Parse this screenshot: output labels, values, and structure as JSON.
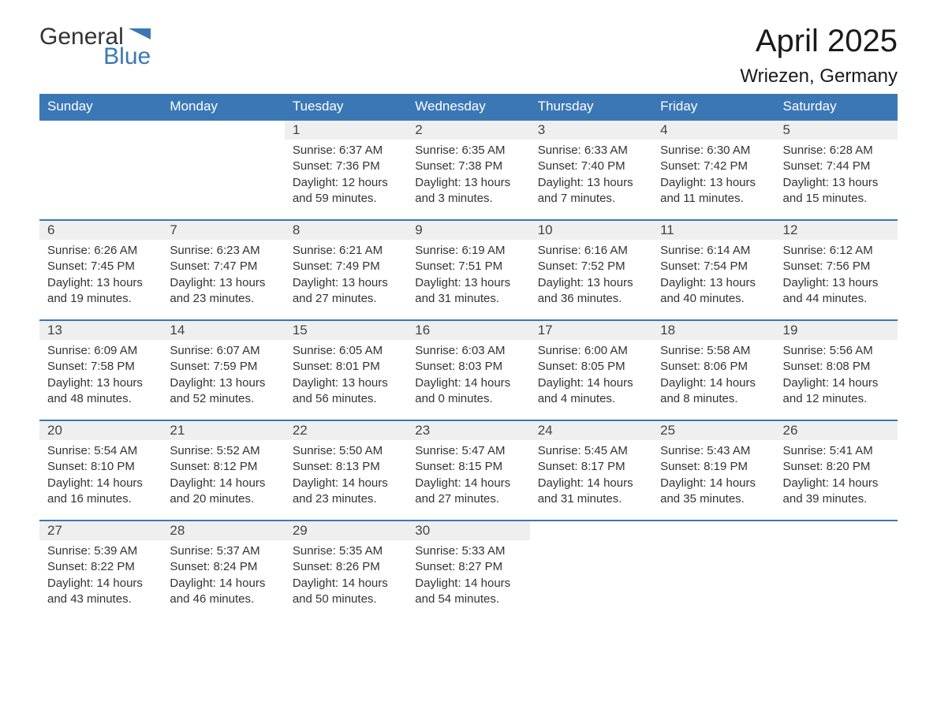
{
  "logo": {
    "text1": "General",
    "text2": "Blue",
    "shape_color": "#3b77b5"
  },
  "title": "April 2025",
  "location": "Wriezen, Germany",
  "columns": [
    "Sunday",
    "Monday",
    "Tuesday",
    "Wednesday",
    "Thursday",
    "Friday",
    "Saturday"
  ],
  "colors": {
    "header_bg": "#3b77b5",
    "header_text": "#ffffff",
    "daynum_bg": "#efefef",
    "row_divider": "#3b77b5",
    "body_text": "#333333",
    "background": "#ffffff"
  },
  "weeks": [
    {
      "nums": [
        "",
        "",
        "1",
        "2",
        "3",
        "4",
        "5"
      ],
      "cells": [
        "",
        "",
        "Sunrise: 6:37 AM\nSunset: 7:36 PM\nDaylight: 12 hours and 59 minutes.",
        "Sunrise: 6:35 AM\nSunset: 7:38 PM\nDaylight: 13 hours and 3 minutes.",
        "Sunrise: 6:33 AM\nSunset: 7:40 PM\nDaylight: 13 hours and 7 minutes.",
        "Sunrise: 6:30 AM\nSunset: 7:42 PM\nDaylight: 13 hours and 11 minutes.",
        "Sunrise: 6:28 AM\nSunset: 7:44 PM\nDaylight: 13 hours and 15 minutes."
      ]
    },
    {
      "nums": [
        "6",
        "7",
        "8",
        "9",
        "10",
        "11",
        "12"
      ],
      "cells": [
        "Sunrise: 6:26 AM\nSunset: 7:45 PM\nDaylight: 13 hours and 19 minutes.",
        "Sunrise: 6:23 AM\nSunset: 7:47 PM\nDaylight: 13 hours and 23 minutes.",
        "Sunrise: 6:21 AM\nSunset: 7:49 PM\nDaylight: 13 hours and 27 minutes.",
        "Sunrise: 6:19 AM\nSunset: 7:51 PM\nDaylight: 13 hours and 31 minutes.",
        "Sunrise: 6:16 AM\nSunset: 7:52 PM\nDaylight: 13 hours and 36 minutes.",
        "Sunrise: 6:14 AM\nSunset: 7:54 PM\nDaylight: 13 hours and 40 minutes.",
        "Sunrise: 6:12 AM\nSunset: 7:56 PM\nDaylight: 13 hours and 44 minutes."
      ]
    },
    {
      "nums": [
        "13",
        "14",
        "15",
        "16",
        "17",
        "18",
        "19"
      ],
      "cells": [
        "Sunrise: 6:09 AM\nSunset: 7:58 PM\nDaylight: 13 hours and 48 minutes.",
        "Sunrise: 6:07 AM\nSunset: 7:59 PM\nDaylight: 13 hours and 52 minutes.",
        "Sunrise: 6:05 AM\nSunset: 8:01 PM\nDaylight: 13 hours and 56 minutes.",
        "Sunrise: 6:03 AM\nSunset: 8:03 PM\nDaylight: 14 hours and 0 minutes.",
        "Sunrise: 6:00 AM\nSunset: 8:05 PM\nDaylight: 14 hours and 4 minutes.",
        "Sunrise: 5:58 AM\nSunset: 8:06 PM\nDaylight: 14 hours and 8 minutes.",
        "Sunrise: 5:56 AM\nSunset: 8:08 PM\nDaylight: 14 hours and 12 minutes."
      ]
    },
    {
      "nums": [
        "20",
        "21",
        "22",
        "23",
        "24",
        "25",
        "26"
      ],
      "cells": [
        "Sunrise: 5:54 AM\nSunset: 8:10 PM\nDaylight: 14 hours and 16 minutes.",
        "Sunrise: 5:52 AM\nSunset: 8:12 PM\nDaylight: 14 hours and 20 minutes.",
        "Sunrise: 5:50 AM\nSunset: 8:13 PM\nDaylight: 14 hours and 23 minutes.",
        "Sunrise: 5:47 AM\nSunset: 8:15 PM\nDaylight: 14 hours and 27 minutes.",
        "Sunrise: 5:45 AM\nSunset: 8:17 PM\nDaylight: 14 hours and 31 minutes.",
        "Sunrise: 5:43 AM\nSunset: 8:19 PM\nDaylight: 14 hours and 35 minutes.",
        "Sunrise: 5:41 AM\nSunset: 8:20 PM\nDaylight: 14 hours and 39 minutes."
      ]
    },
    {
      "nums": [
        "27",
        "28",
        "29",
        "30",
        "",
        "",
        ""
      ],
      "cells": [
        "Sunrise: 5:39 AM\nSunset: 8:22 PM\nDaylight: 14 hours and 43 minutes.",
        "Sunrise: 5:37 AM\nSunset: 8:24 PM\nDaylight: 14 hours and 46 minutes.",
        "Sunrise: 5:35 AM\nSunset: 8:26 PM\nDaylight: 14 hours and 50 minutes.",
        "Sunrise: 5:33 AM\nSunset: 8:27 PM\nDaylight: 14 hours and 54 minutes.",
        "",
        "",
        ""
      ]
    }
  ]
}
